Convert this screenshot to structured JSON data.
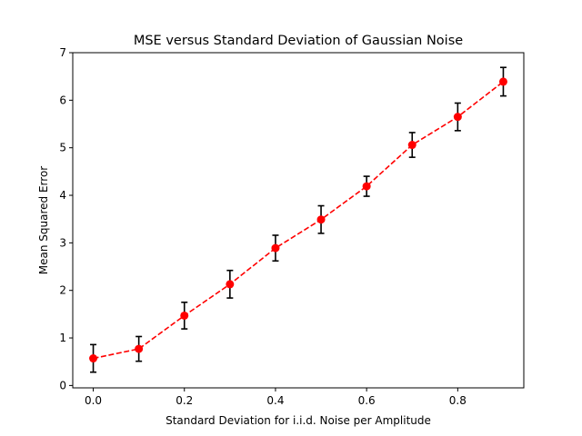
{
  "chart_data": {
    "type": "line",
    "title": "MSE versus Standard Deviation of Gaussian Noise",
    "xlabel": "Standard Deviation for i.i.d. Noise per Amplitude",
    "ylabel": "Mean Squared Error",
    "xlim": [
      -0.045,
      0.945
    ],
    "ylim": [
      -0.05,
      7
    ],
    "xticks": [
      0.0,
      0.2,
      0.4,
      0.6,
      0.8
    ],
    "xtick_labels": [
      "0.0",
      "0.2",
      "0.4",
      "0.6",
      "0.8"
    ],
    "yticks": [
      0,
      1,
      2,
      3,
      4,
      5,
      6,
      7
    ],
    "ytick_labels": [
      "0",
      "1",
      "2",
      "3",
      "4",
      "5",
      "6",
      "7"
    ],
    "grid": false,
    "series": [
      {
        "x": [
          0.0,
          0.1,
          0.2,
          0.3,
          0.4,
          0.5,
          0.6,
          0.7,
          0.8,
          0.9
        ],
        "values": [
          0.57,
          0.77,
          1.47,
          2.13,
          2.89,
          3.49,
          4.19,
          5.06,
          5.65,
          6.39
        ],
        "error": [
          0.29,
          0.26,
          0.28,
          0.29,
          0.27,
          0.29,
          0.21,
          0.26,
          0.29,
          0.3
        ],
        "color": "#ff0000",
        "errorbar_color": "#000000",
        "linestyle": "dashed",
        "marker": "circle"
      }
    ]
  }
}
